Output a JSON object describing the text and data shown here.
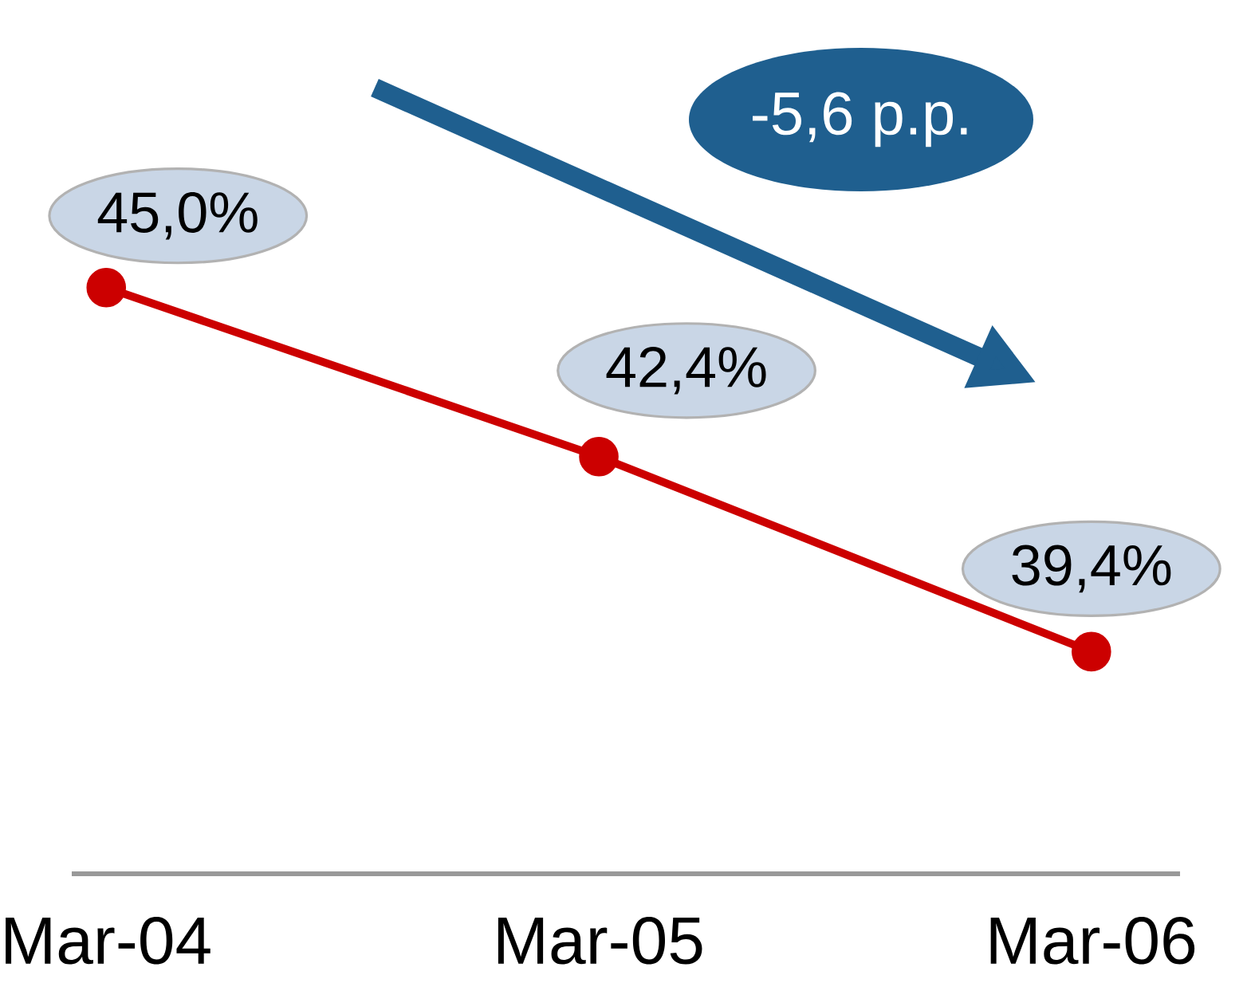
{
  "chart_data": {
    "type": "line",
    "categories": [
      "Mar-04",
      "Mar-05",
      "Mar-06"
    ],
    "values": [
      45.0,
      42.4,
      39.4
    ],
    "value_labels": [
      "45,0%",
      "42,4%",
      "39,4%"
    ],
    "color": "#cc0000",
    "marker": "circle",
    "line_style": "solid",
    "tick_labels": "x",
    "annotations": [
      "-5,6 p.p."
    ]
  }
}
